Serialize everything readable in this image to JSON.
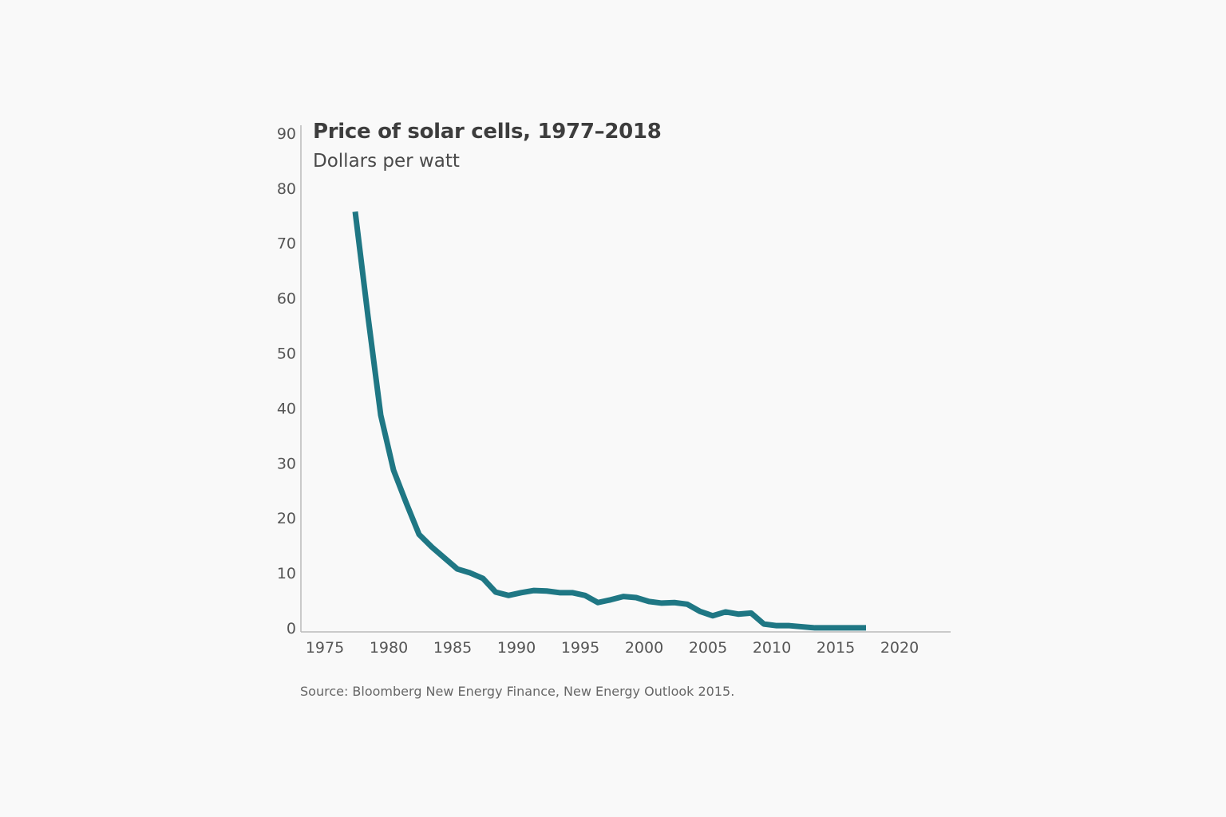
{
  "chart_data": {
    "type": "line",
    "title": "Price of solar cells, 1977–2018",
    "subtitle": "Dollars per watt",
    "source": "Source: Bloomberg New Energy Finance, New Energy Outlook 2015.",
    "xlabel": "",
    "ylabel": "",
    "xlim": [
      1974,
      2023
    ],
    "ylim": [
      0,
      90
    ],
    "x_ticks": [
      1975,
      1980,
      1985,
      1990,
      1995,
      2000,
      2005,
      2010,
      2015,
      2020
    ],
    "y_ticks": [
      0,
      10,
      20,
      30,
      40,
      50,
      60,
      70,
      80,
      90
    ],
    "grid": false,
    "line_color": "#1f7784",
    "series": [
      {
        "x": [
          1977,
          1978,
          1979,
          1980,
          1981,
          1982,
          1983,
          1984,
          1985,
          1986,
          1987,
          1988,
          1989,
          1990,
          1991,
          1992,
          1993,
          1994,
          1995,
          1996,
          1997,
          1998,
          1999,
          2000,
          2001,
          2002,
          2003,
          2004,
          2005,
          2006,
          2007,
          2008,
          2009,
          2010,
          2011,
          2012,
          2013,
          2014,
          2015,
          2016,
          2017
        ],
        "values": [
          76,
          57,
          39,
          29,
          23,
          17.3,
          15,
          13,
          11,
          10.3,
          9.3,
          6.8,
          6.2,
          6.7,
          7.1,
          7,
          6.7,
          6.7,
          6.2,
          4.9,
          5.4,
          6,
          5.8,
          5.1,
          4.8,
          4.9,
          4.6,
          3.3,
          2.5,
          3.2,
          2.8,
          3,
          1,
          0.7,
          0.7,
          0.5,
          0.3,
          0.3,
          0.3,
          0.3,
          0.3
        ]
      }
    ]
  }
}
